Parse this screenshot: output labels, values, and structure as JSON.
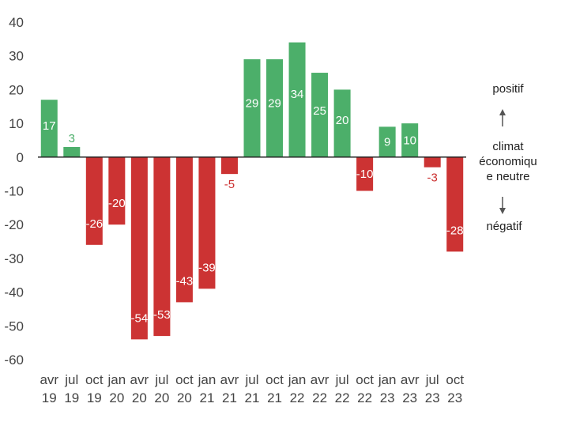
{
  "chart_data": {
    "type": "bar",
    "title": "",
    "xlabel": "",
    "ylabel": "",
    "ylim": [
      -60,
      40
    ],
    "yticks": [
      "40",
      "30",
      "20",
      "10",
      "0",
      "-10",
      "-20",
      "-30",
      "-40",
      "-50",
      "-60"
    ],
    "ytick_values": [
      40,
      30,
      20,
      10,
      0,
      -10,
      -20,
      -30,
      -40,
      -50,
      -60
    ],
    "grid": false,
    "categories": [
      {
        "month": "avr",
        "year": "19"
      },
      {
        "month": "jul",
        "year": "19"
      },
      {
        "month": "oct",
        "year": "19"
      },
      {
        "month": "jan",
        "year": "20"
      },
      {
        "month": "avr",
        "year": "20"
      },
      {
        "month": "jul",
        "year": "20"
      },
      {
        "month": "oct",
        "year": "20"
      },
      {
        "month": "jan",
        "year": "21"
      },
      {
        "month": "avr",
        "year": "21"
      },
      {
        "month": "jul",
        "year": "21"
      },
      {
        "month": "oct",
        "year": "21"
      },
      {
        "month": "jan",
        "year": "22"
      },
      {
        "month": "avr",
        "year": "22"
      },
      {
        "month": "jul",
        "year": "22"
      },
      {
        "month": "oct",
        "year": "22"
      },
      {
        "month": "jan",
        "year": "23"
      },
      {
        "month": "avr",
        "year": "23"
      },
      {
        "month": "jul",
        "year": "23"
      },
      {
        "month": "oct",
        "year": "23"
      }
    ],
    "values": [
      17,
      3,
      -26,
      -20,
      -54,
      -53,
      -43,
      -39,
      -5,
      29,
      29,
      34,
      25,
      20,
      -10,
      9,
      10,
      -3,
      -28
    ],
    "labels": [
      "17",
      "3",
      "-26",
      "-20",
      "-54",
      "-53",
      "-43",
      "-39",
      "-5",
      "29",
      "29",
      "34",
      "25",
      "20",
      "-10",
      "9",
      "10",
      "-3",
      "-28"
    ],
    "colors": {
      "positive": "#4caf6a",
      "negative": "#cc3333",
      "axis": "#222222",
      "legend_arrow": "#555555"
    }
  },
  "legend": {
    "positive": "positif",
    "neutral_line1": "climat",
    "neutral_line2": "économiqu",
    "neutral_line3": "e neutre",
    "negative": "négatif"
  }
}
